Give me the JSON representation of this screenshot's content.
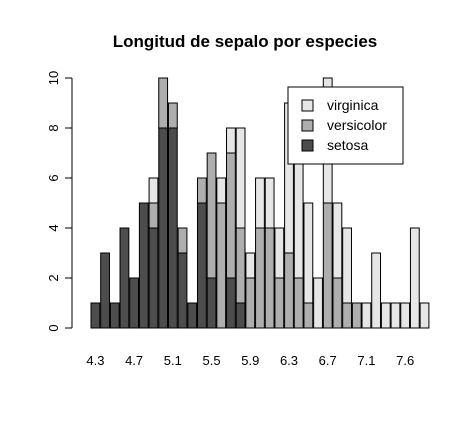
{
  "chart_data": {
    "type": "bar",
    "stacked": true,
    "title": "Longitud de sepalo por especies",
    "xlabel": "",
    "ylabel": "",
    "ylim": [
      0,
      10
    ],
    "yticks": [
      0,
      2,
      4,
      6,
      8,
      10
    ],
    "categories": [
      4.3,
      4.4,
      4.5,
      4.6,
      4.7,
      4.8,
      4.9,
      5.0,
      5.1,
      5.2,
      5.3,
      5.4,
      5.5,
      5.6,
      5.7,
      5.8,
      5.9,
      6.0,
      6.1,
      6.2,
      6.3,
      6.4,
      6.5,
      6.6,
      6.7,
      6.8,
      6.9,
      7.0,
      7.1,
      7.2,
      7.3,
      7.4,
      7.6,
      7.7,
      7.9
    ],
    "x_tick_labels": [
      "4.3",
      "4.7",
      "5.1",
      "5.5",
      "5.9",
      "6.3",
      "6.7",
      "7.1",
      "7.6"
    ],
    "series": [
      {
        "name": "setosa",
        "color": "#4d4d4d",
        "values": [
          1,
          3,
          1,
          4,
          2,
          5,
          4,
          8,
          8,
          3,
          1,
          5,
          2,
          0,
          2,
          1,
          0,
          0,
          0,
          0,
          0,
          0,
          0,
          0,
          0,
          0,
          0,
          0,
          0,
          0,
          0,
          0,
          0,
          0,
          0
        ]
      },
      {
        "name": "versicolor",
        "color": "#aeaeae",
        "values": [
          0,
          0,
          0,
          0,
          0,
          0,
          1,
          2,
          1,
          1,
          0,
          1,
          5,
          5,
          5,
          3,
          2,
          4,
          4,
          2,
          3,
          2,
          1,
          0,
          5,
          2,
          1,
          1,
          0,
          0,
          0,
          0,
          0,
          0,
          0
        ]
      },
      {
        "name": "virginica",
        "color": "#e6e6e6",
        "values": [
          0,
          0,
          0,
          0,
          0,
          0,
          1,
          0,
          0,
          0,
          0,
          0,
          0,
          1,
          1,
          4,
          1,
          2,
          2,
          2,
          6,
          5,
          4,
          2,
          5,
          3,
          3,
          0,
          1,
          3,
          1,
          1,
          1,
          4,
          1
        ]
      }
    ],
    "legend": {
      "position": "top-right",
      "order": [
        "virginica",
        "versicolor",
        "setosa"
      ]
    },
    "grid": false
  }
}
